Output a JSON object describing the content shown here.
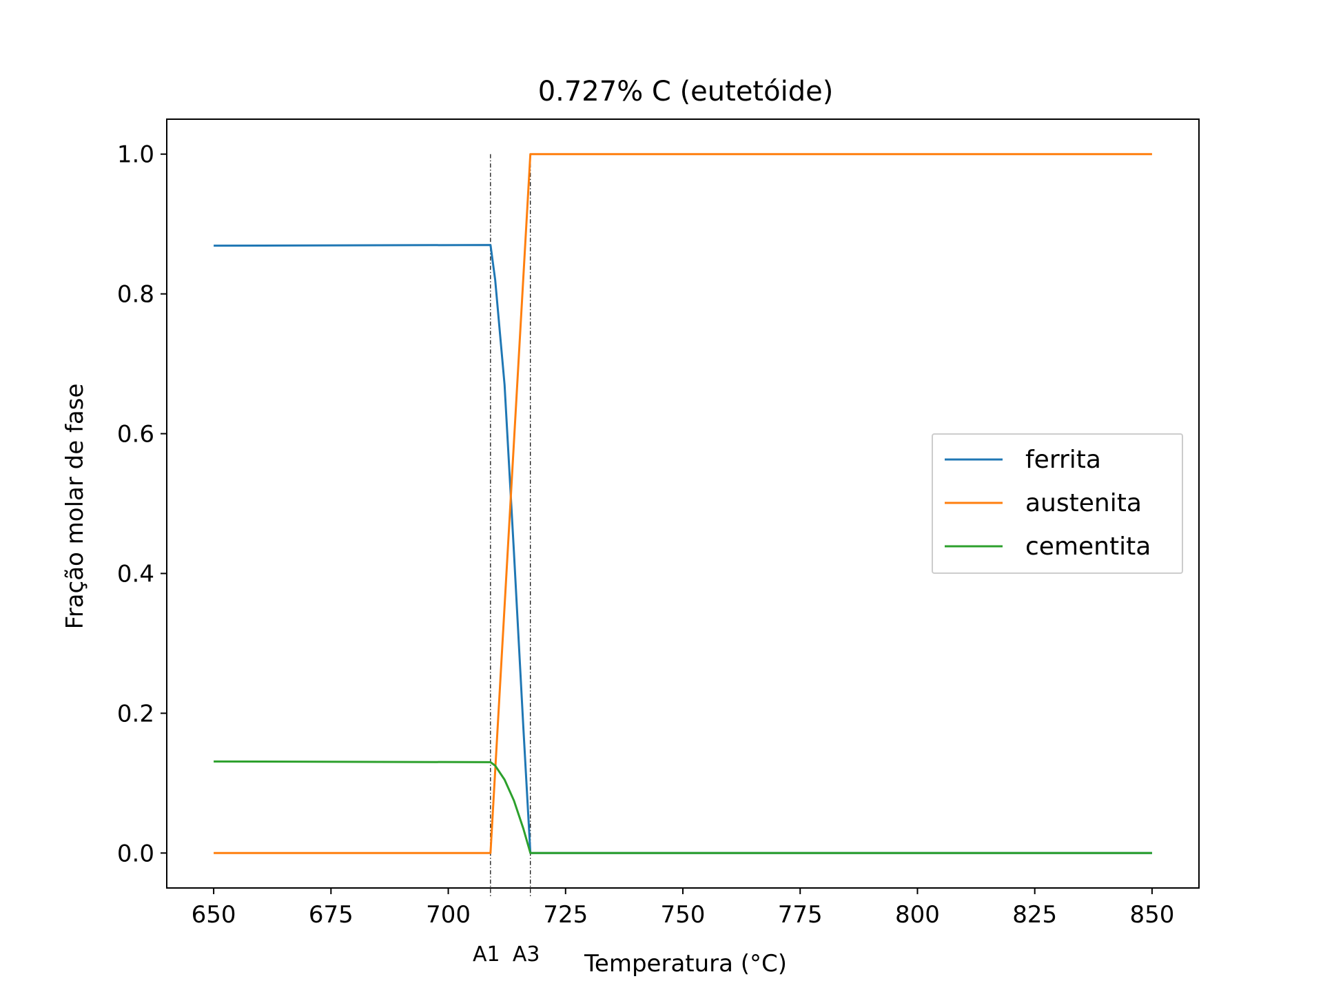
{
  "chart_data": {
    "type": "line",
    "title": "0.727% C (eutetóide)",
    "xlabel": "Temperatura (°C)",
    "ylabel": "Fração molar de fase",
    "xlim": [
      640,
      860
    ],
    "ylim": [
      -0.05,
      1.05
    ],
    "xticks": [
      650,
      675,
      700,
      725,
      750,
      775,
      800,
      825,
      850
    ],
    "yticks": [
      0.0,
      0.2,
      0.4,
      0.6,
      0.8,
      1.0
    ],
    "grid": false,
    "legend_position": "center-right",
    "colors": {
      "ferrita": "#1f77b4",
      "austenita": "#ff7f0e",
      "cementita": "#2ca02c",
      "reference_lines": "#000000"
    },
    "reference_lines": [
      {
        "label": "A1",
        "x": 709
      },
      {
        "label": "A3",
        "x": 717.5
      }
    ],
    "series": [
      {
        "name": "ferrita",
        "x": [
          650,
          709,
          710,
          712,
          714,
          716,
          717.5,
          720,
          850
        ],
        "y": [
          0.869,
          0.87,
          0.82,
          0.67,
          0.43,
          0.18,
          0.0,
          0.0,
          0.0
        ]
      },
      {
        "name": "austenita",
        "x": [
          650,
          709,
          717.5,
          720,
          850
        ],
        "y": [
          0.0,
          0.0,
          1.0,
          1.0,
          1.0
        ]
      },
      {
        "name": "cementita",
        "x": [
          650,
          709,
          710,
          712,
          714,
          716,
          717.5,
          720,
          850
        ],
        "y": [
          0.131,
          0.13,
          0.125,
          0.105,
          0.075,
          0.035,
          0.0,
          0.0,
          0.0
        ]
      }
    ]
  }
}
